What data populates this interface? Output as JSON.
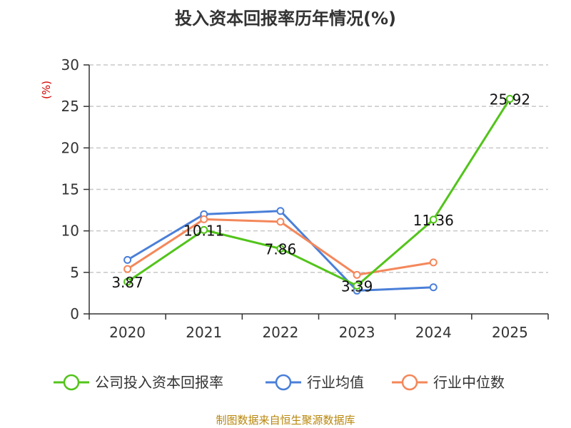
{
  "chart_data": {
    "type": "line",
    "title": "投入资本回报率历年情况(%)",
    "unit_label": "(%)",
    "categories": [
      "2020",
      "2021",
      "2022",
      "2023",
      "2024",
      "2025"
    ],
    "ylim": [
      0,
      30
    ],
    "yticks": [
      0,
      5,
      10,
      15,
      20,
      25,
      30
    ],
    "grid": true,
    "legend_position": "bottom",
    "series": [
      {
        "name": "公司投入资本回报率",
        "color": "#52c41a",
        "values": [
          3.87,
          10.11,
          7.86,
          3.39,
          11.36,
          25.92
        ],
        "labels": [
          "3.87",
          "10.11",
          "7.86",
          "3.39",
          "11.36",
          "25.92"
        ]
      },
      {
        "name": "行业均值",
        "color": "#4a7fd8",
        "values": [
          6.5,
          12.0,
          12.4,
          2.8,
          3.2,
          null
        ]
      },
      {
        "name": "行业中位数",
        "color": "#f4875a",
        "values": [
          5.4,
          11.4,
          11.1,
          4.7,
          6.2,
          null
        ]
      }
    ]
  },
  "footer": {
    "source": "制图数据来自恒生聚源数据库"
  }
}
